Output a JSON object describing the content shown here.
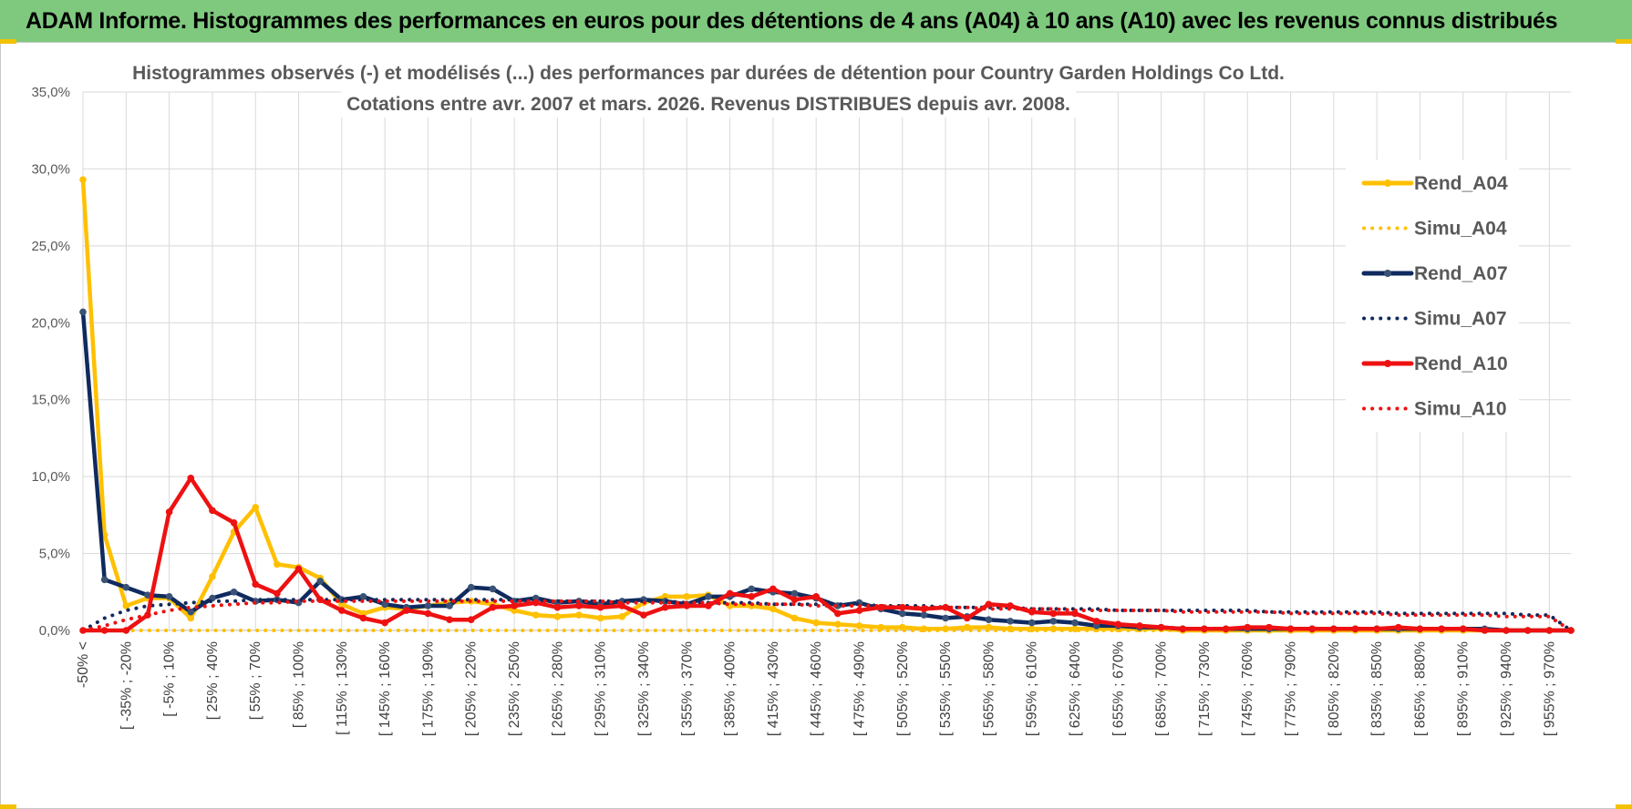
{
  "banner": {
    "title": "ADAM Informe. Histogrammes des performances en euros pour des détentions de 4 ans (A04) à 10 ans (A10) avec les revenus connus distribués"
  },
  "colors": {
    "banner": "#7ec97e",
    "a04": "#ffc000",
    "a07": "#0f2a5e",
    "a10": "#ee1111",
    "grid": "#d9d9d9"
  },
  "chart_data": {
    "type": "line",
    "title_lines": [
      "Histogrammes observés (-) et modélisés (...) des performances par durées de détention pour Country Garden Holdings Co Ltd.",
      "Cotations entre avr. 2007 et mars. 2026. Revenus DISTRIBUES depuis avr. 2008."
    ],
    "ylim": [
      0,
      35
    ],
    "yticks": [
      "0,0%",
      "5,0%",
      "10,0%",
      "15,0%",
      "20,0%",
      "25,0%",
      "30,0%",
      "35,0%"
    ],
    "xtick_labels": [
      "-50% <",
      "[ -35% ; -20%",
      "[ -5% ; 10%",
      "[ 25% ; 40%",
      "[ 55% ; 70%",
      "[ 85% ; 100%",
      "[ 115% ; 130%",
      "[ 145% ; 160%",
      "[ 175% ; 190%",
      "[ 205% ; 220%",
      "[ 235% ; 250%",
      "[ 265% ; 280%",
      "[ 295% ; 310%",
      "[ 325% ; 340%",
      "[ 355% ; 370%",
      "[ 385% ; 400%",
      "[ 415% ; 430%",
      "[ 445% ; 460%",
      "[ 475% ; 490%",
      "[ 505% ; 520%",
      "[ 535% ; 550%",
      "[ 565% ; 580%",
      "[ 595% ; 610%",
      "[ 625% ; 640%",
      "[ 655% ; 670%",
      "[ 685% ; 700%",
      "[ 715% ; 730%",
      "[ 745% ; 760%",
      "[ 775% ; 790%",
      "[ 805% ; 820%",
      "[ 835% ; 850%",
      "[ 865% ; 880%",
      "[ 895% ; 910%",
      "[ 925% ; 940%",
      "[ 955% ; 970%"
    ],
    "legend": [
      "Rend_A04",
      "Simu_A04",
      "Rend_A07",
      "Simu_A07",
      "Rend_A10",
      "Simu_A10"
    ],
    "legend_position": "right",
    "series": [
      {
        "name": "Rend_A04",
        "style": "solid",
        "color": "#ffc000",
        "values": [
          29.3,
          6.2,
          1.6,
          2.1,
          2.1,
          0.8,
          3.5,
          6.4,
          8.0,
          4.3,
          4.1,
          3.4,
          1.7,
          1.1,
          1.5,
          1.4,
          1.6,
          1.8,
          1.9,
          1.7,
          1.3,
          1.0,
          0.9,
          1.0,
          0.8,
          0.9,
          1.8,
          2.2,
          2.2,
          2.3,
          1.6,
          1.6,
          1.4,
          0.8,
          0.5,
          0.4,
          0.3,
          0.2,
          0.2,
          0.1,
          0.1,
          0.2,
          0.2,
          0.1,
          0.1,
          0.1,
          0.1,
          0.1,
          0.1,
          0.1,
          0.1,
          0.0,
          0.0,
          0.0,
          0.0,
          0.0,
          0.0,
          0.0,
          0.0,
          0.0,
          0.0,
          0.0,
          0.0,
          0.0,
          0.0,
          0.0,
          0.0,
          0.0,
          0.0,
          0.0
        ]
      },
      {
        "name": "Simu_A04",
        "style": "dotted",
        "color": "#ffc000",
        "values": [
          0.0,
          0.0,
          0.0,
          0.0,
          0.0,
          0.0,
          0.0,
          0.0,
          0.0,
          0.0,
          0.0,
          0.0,
          0.0,
          0.0,
          0.0,
          0.0,
          0.0,
          0.0,
          0.0,
          0.0,
          0.0,
          0.0,
          0.0,
          0.0,
          0.0,
          0.0,
          0.0,
          0.0,
          0.0,
          0.0,
          0.0,
          0.0,
          0.0,
          0.0,
          0.0,
          0.0,
          0.0,
          0.0,
          0.0,
          0.0,
          0.0,
          0.0,
          0.0,
          0.0,
          0.0,
          0.0,
          0.0,
          0.0,
          0.0,
          0.0,
          0.0,
          0.0,
          0.0,
          0.0,
          0.0,
          0.0,
          0.0,
          0.0,
          0.0,
          0.0,
          0.0,
          0.0,
          0.0,
          0.0,
          0.0,
          0.0,
          0.0,
          0.0,
          0.0,
          0.0
        ]
      },
      {
        "name": "Rend_A07",
        "style": "solid",
        "color": "#0f2a5e",
        "values": [
          20.7,
          3.3,
          2.8,
          2.3,
          2.2,
          1.2,
          2.1,
          2.5,
          1.9,
          2.0,
          1.8,
          3.2,
          2.0,
          2.2,
          1.7,
          1.5,
          1.6,
          1.6,
          2.8,
          2.7,
          1.9,
          2.1,
          1.8,
          1.9,
          1.7,
          1.9,
          2.0,
          1.9,
          1.7,
          2.2,
          2.2,
          2.7,
          2.5,
          2.4,
          2.1,
          1.6,
          1.8,
          1.4,
          1.1,
          1.0,
          0.8,
          0.9,
          0.7,
          0.6,
          0.5,
          0.6,
          0.5,
          0.3,
          0.3,
          0.2,
          0.2,
          0.1,
          0.1,
          0.1,
          0.1,
          0.1,
          0.1,
          0.1,
          0.1,
          0.1,
          0.1,
          0.1,
          0.1,
          0.1,
          0.1,
          0.1,
          0.0,
          0.0,
          0.0,
          0.0
        ]
      },
      {
        "name": "Simu_A07",
        "style": "dotted",
        "color": "#0f2a5e",
        "values": [
          0.0,
          0.8,
          1.3,
          1.6,
          1.7,
          1.8,
          1.9,
          1.9,
          2.0,
          2.0,
          2.0,
          2.0,
          2.0,
          2.0,
          2.0,
          2.0,
          2.0,
          2.0,
          2.0,
          2.0,
          2.0,
          1.9,
          1.9,
          1.9,
          1.9,
          1.9,
          1.9,
          1.9,
          1.8,
          1.8,
          1.8,
          1.8,
          1.7,
          1.7,
          1.7,
          1.7,
          1.7,
          1.6,
          1.6,
          1.6,
          1.5,
          1.5,
          1.5,
          1.5,
          1.4,
          1.4,
          1.4,
          1.4,
          1.3,
          1.3,
          1.3,
          1.3,
          1.3,
          1.3,
          1.3,
          1.2,
          1.2,
          1.2,
          1.2,
          1.2,
          1.2,
          1.1,
          1.1,
          1.1,
          1.1,
          1.1,
          1.1,
          1.0,
          1.0,
          0.0
        ]
      },
      {
        "name": "Rend_A10",
        "style": "solid",
        "color": "#ee1111",
        "values": [
          0.0,
          0.0,
          0.0,
          1.0,
          7.7,
          9.9,
          7.8,
          7.0,
          3.0,
          2.4,
          4.0,
          2.0,
          1.3,
          0.8,
          0.5,
          1.3,
          1.1,
          0.7,
          0.7,
          1.5,
          1.6,
          1.8,
          1.5,
          1.6,
          1.5,
          1.6,
          1.0,
          1.5,
          1.6,
          1.6,
          2.4,
          2.2,
          2.7,
          2.0,
          2.2,
          1.1,
          1.3,
          1.5,
          1.5,
          1.4,
          1.5,
          0.8,
          1.7,
          1.6,
          1.2,
          1.1,
          1.1,
          0.6,
          0.4,
          0.3,
          0.2,
          0.1,
          0.1,
          0.1,
          0.2,
          0.2,
          0.1,
          0.1,
          0.1,
          0.1,
          0.1,
          0.2,
          0.1,
          0.1,
          0.1,
          0.0,
          0.0,
          0.0,
          0.0,
          0.0
        ]
      },
      {
        "name": "Simu_A10",
        "style": "dotted",
        "color": "#ee1111",
        "values": [
          0.0,
          0.3,
          0.7,
          1.0,
          1.3,
          1.5,
          1.6,
          1.7,
          1.8,
          1.8,
          1.9,
          1.9,
          1.9,
          1.9,
          1.9,
          1.9,
          1.9,
          1.9,
          1.9,
          1.9,
          1.9,
          1.9,
          1.9,
          1.9,
          1.9,
          1.8,
          1.8,
          1.8,
          1.8,
          1.8,
          1.7,
          1.7,
          1.7,
          1.7,
          1.6,
          1.6,
          1.6,
          1.6,
          1.5,
          1.5,
          1.5,
          1.5,
          1.4,
          1.4,
          1.4,
          1.4,
          1.3,
          1.3,
          1.3,
          1.3,
          1.3,
          1.2,
          1.2,
          1.2,
          1.2,
          1.2,
          1.1,
          1.1,
          1.1,
          1.1,
          1.1,
          1.0,
          1.0,
          1.0,
          1.0,
          1.0,
          0.9,
          0.9,
          0.9,
          0.0
        ]
      }
    ]
  }
}
